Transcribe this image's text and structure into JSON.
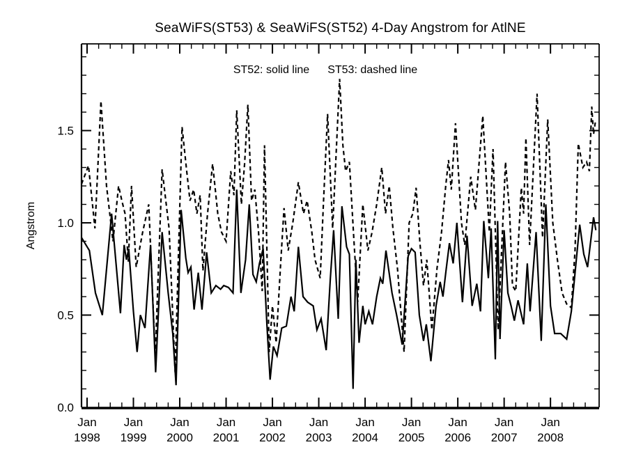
{
  "figure": {
    "title": "SeaWiFS(ST53) & SeaWiFS(ST52) 4-Day Angstrom for AtlNE",
    "legend": {
      "st52": "ST52: solid line",
      "st53": "ST53: dashed line"
    },
    "ylabel": "Angstrom",
    "line_color": "#000000",
    "background": "#ffffff"
  },
  "chart_data": {
    "type": "line",
    "title": "SeaWiFS(ST53) & SeaWiFS(ST52) 4-Day Angstrom for AtlNE",
    "xlabel": "",
    "ylabel": "Angstrom",
    "grid": false,
    "legend_position": "top-center-inside",
    "legend_entries": [
      "ST52: solid line",
      "ST53: dashed line"
    ],
    "xlim": [
      1997.88,
      2009.05
    ],
    "ylim": [
      0.0,
      1.97
    ],
    "ytick_major_values": [
      0.0,
      0.5,
      1.0,
      1.5
    ],
    "ytick_labels": [
      "0.0",
      "0.5",
      "1.0",
      "1.5"
    ],
    "ytick_minor_step": 0.1,
    "xtick_major_years": [
      1998,
      1999,
      2000,
      2001,
      2002,
      2003,
      2004,
      2005,
      2006,
      2007,
      2008
    ],
    "xtick_labels": [
      {
        "month": "Jan",
        "year": "1998"
      },
      {
        "month": "Jan",
        "year": "1999"
      },
      {
        "month": "Jan",
        "year": "2000"
      },
      {
        "month": "Jan",
        "year": "2001"
      },
      {
        "month": "Jan",
        "year": "2002"
      },
      {
        "month": "Jan",
        "year": "2003"
      },
      {
        "month": "Jan",
        "year": "2004"
      },
      {
        "month": "Jan",
        "year": "2005"
      },
      {
        "month": "Jan",
        "year": "2006"
      },
      {
        "month": "Jan",
        "year": "2007"
      },
      {
        "month": "Jan",
        "year": "2008"
      }
    ],
    "xtick_minor_step": 0.25,
    "series": [
      {
        "name": "ST52",
        "label": "ST52: solid line",
        "style": "solid",
        "color": "#000000",
        "points": [
          [
            1997.88,
            0.92
          ],
          [
            1998.05,
            0.85
          ],
          [
            1998.18,
            0.62
          ],
          [
            1998.33,
            0.5
          ],
          [
            1998.53,
            1.05
          ],
          [
            1998.72,
            0.51
          ],
          [
            1998.8,
            0.88
          ],
          [
            1998.85,
            0.8
          ],
          [
            1998.9,
            0.86
          ],
          [
            1999.0,
            0.52
          ],
          [
            1999.08,
            0.3
          ],
          [
            1999.15,
            0.5
          ],
          [
            1999.25,
            0.43
          ],
          [
            1999.37,
            0.88
          ],
          [
            1999.48,
            0.19
          ],
          [
            1999.62,
            0.95
          ],
          [
            1999.75,
            0.62
          ],
          [
            1999.85,
            0.4
          ],
          [
            1999.92,
            0.12
          ],
          [
            2000.03,
            1.07
          ],
          [
            2000.13,
            0.81
          ],
          [
            2000.18,
            0.73
          ],
          [
            2000.24,
            0.76
          ],
          [
            2000.31,
            0.53
          ],
          [
            2000.4,
            0.73
          ],
          [
            2000.48,
            0.53
          ],
          [
            2000.58,
            0.84
          ],
          [
            2000.68,
            0.62
          ],
          [
            2000.78,
            0.66
          ],
          [
            2000.88,
            0.64
          ],
          [
            2000.95,
            0.66
          ],
          [
            2001.05,
            0.65
          ],
          [
            2001.15,
            0.62
          ],
          [
            2001.23,
            1.18
          ],
          [
            2001.32,
            0.62
          ],
          [
            2001.42,
            0.8
          ],
          [
            2001.5,
            1.1
          ],
          [
            2001.58,
            0.72
          ],
          [
            2001.65,
            0.68
          ],
          [
            2001.72,
            0.78
          ],
          [
            2001.8,
            0.86
          ],
          [
            2001.88,
            0.45
          ],
          [
            2001.95,
            0.15
          ],
          [
            2002.02,
            0.33
          ],
          [
            2002.1,
            0.28
          ],
          [
            2002.2,
            0.43
          ],
          [
            2002.3,
            0.44
          ],
          [
            2002.4,
            0.6
          ],
          [
            2002.47,
            0.52
          ],
          [
            2002.56,
            0.87
          ],
          [
            2002.66,
            0.6
          ],
          [
            2002.76,
            0.57
          ],
          [
            2002.88,
            0.55
          ],
          [
            2002.96,
            0.42
          ],
          [
            2003.05,
            0.48
          ],
          [
            2003.16,
            0.31
          ],
          [
            2003.25,
            0.7
          ],
          [
            2003.32,
            0.96
          ],
          [
            2003.42,
            0.48
          ],
          [
            2003.5,
            1.09
          ],
          [
            2003.6,
            0.87
          ],
          [
            2003.66,
            0.83
          ],
          [
            2003.74,
            0.1
          ],
          [
            2003.8,
            0.8
          ],
          [
            2003.87,
            0.35
          ],
          [
            2003.95,
            0.55
          ],
          [
            2004.0,
            0.45
          ],
          [
            2004.08,
            0.52
          ],
          [
            2004.16,
            0.45
          ],
          [
            2004.25,
            0.6
          ],
          [
            2004.33,
            0.7
          ],
          [
            2004.38,
            0.67
          ],
          [
            2004.45,
            0.85
          ],
          [
            2004.58,
            0.62
          ],
          [
            2004.68,
            0.5
          ],
          [
            2004.8,
            0.34
          ],
          [
            2004.93,
            0.82
          ],
          [
            2005.0,
            0.86
          ],
          [
            2005.08,
            0.84
          ],
          [
            2005.17,
            0.5
          ],
          [
            2005.26,
            0.36
          ],
          [
            2005.32,
            0.45
          ],
          [
            2005.42,
            0.25
          ],
          [
            2005.53,
            0.55
          ],
          [
            2005.62,
            0.68
          ],
          [
            2005.68,
            0.6
          ],
          [
            2005.75,
            0.75
          ],
          [
            2005.82,
            0.89
          ],
          [
            2005.9,
            0.78
          ],
          [
            2005.98,
            1.0
          ],
          [
            2006.1,
            0.57
          ],
          [
            2006.2,
            0.93
          ],
          [
            2006.31,
            0.55
          ],
          [
            2006.41,
            0.67
          ],
          [
            2006.49,
            0.52
          ],
          [
            2006.56,
            1.01
          ],
          [
            2006.66,
            0.7
          ],
          [
            2006.72,
            0.97
          ],
          [
            2006.81,
            0.26
          ],
          [
            2006.86,
            1.01
          ],
          [
            2006.91,
            0.37
          ],
          [
            2007.0,
            0.96
          ],
          [
            2007.08,
            0.62
          ],
          [
            2007.15,
            0.55
          ],
          [
            2007.22,
            0.47
          ],
          [
            2007.3,
            0.58
          ],
          [
            2007.42,
            0.45
          ],
          [
            2007.5,
            0.78
          ],
          [
            2007.56,
            0.52
          ],
          [
            2007.69,
            0.95
          ],
          [
            2007.8,
            0.36
          ],
          [
            2007.9,
            1.1
          ],
          [
            2008.0,
            0.55
          ],
          [
            2008.09,
            0.4
          ],
          [
            2008.22,
            0.4
          ],
          [
            2008.35,
            0.37
          ],
          [
            2008.45,
            0.52
          ],
          [
            2008.63,
            0.99
          ],
          [
            2008.72,
            0.83
          ],
          [
            2008.8,
            0.76
          ],
          [
            2008.93,
            1.03
          ],
          [
            2008.98,
            0.96
          ]
        ]
      },
      {
        "name": "ST53",
        "label": "ST53: dashed line",
        "style": "dashed",
        "color": "#000000",
        "points": [
          [
            1997.88,
            1.21
          ],
          [
            1998.03,
            1.31
          ],
          [
            1998.17,
            0.97
          ],
          [
            1998.3,
            1.66
          ],
          [
            1998.42,
            1.2
          ],
          [
            1998.56,
            0.9
          ],
          [
            1998.68,
            1.2
          ],
          [
            1998.75,
            1.12
          ],
          [
            1998.82,
            1.05
          ],
          [
            1998.89,
            0.79
          ],
          [
            1998.96,
            1.2
          ],
          [
            1999.06,
            0.76
          ],
          [
            1999.2,
            0.95
          ],
          [
            1999.33,
            1.1
          ],
          [
            1999.47,
            0.28
          ],
          [
            1999.62,
            1.29
          ],
          [
            1999.77,
            0.97
          ],
          [
            1999.9,
            0.19
          ],
          [
            2000.05,
            1.52
          ],
          [
            2000.15,
            1.28
          ],
          [
            2000.22,
            1.12
          ],
          [
            2000.3,
            1.18
          ],
          [
            2000.37,
            1.05
          ],
          [
            2000.44,
            1.15
          ],
          [
            2000.5,
            0.74
          ],
          [
            2000.6,
            1.05
          ],
          [
            2000.71,
            1.32
          ],
          [
            2000.82,
            1.05
          ],
          [
            2000.9,
            0.95
          ],
          [
            2001.0,
            0.9
          ],
          [
            2001.1,
            1.28
          ],
          [
            2001.17,
            1.15
          ],
          [
            2001.23,
            1.61
          ],
          [
            2001.33,
            1.1
          ],
          [
            2001.4,
            1.32
          ],
          [
            2001.47,
            1.64
          ],
          [
            2001.55,
            1.12
          ],
          [
            2001.62,
            1.18
          ],
          [
            2001.7,
            0.95
          ],
          [
            2001.78,
            0.63
          ],
          [
            2001.83,
            1.42
          ],
          [
            2001.93,
            0.3
          ],
          [
            2002.0,
            0.55
          ],
          [
            2002.08,
            0.35
          ],
          [
            2002.17,
            0.75
          ],
          [
            2002.25,
            1.08
          ],
          [
            2002.34,
            0.85
          ],
          [
            2002.44,
            1.0
          ],
          [
            2002.56,
            1.22
          ],
          [
            2002.67,
            1.05
          ],
          [
            2002.75,
            1.12
          ],
          [
            2002.85,
            0.95
          ],
          [
            2002.92,
            0.8
          ],
          [
            2003.03,
            0.7
          ],
          [
            2003.1,
            1.1
          ],
          [
            2003.19,
            1.59
          ],
          [
            2003.3,
            0.97
          ],
          [
            2003.45,
            1.78
          ],
          [
            2003.52,
            1.42
          ],
          [
            2003.58,
            1.28
          ],
          [
            2003.66,
            1.33
          ],
          [
            2003.76,
            0.9
          ],
          [
            2003.84,
            0.57
          ],
          [
            2003.95,
            1.1
          ],
          [
            2004.06,
            0.85
          ],
          [
            2004.15,
            0.95
          ],
          [
            2004.25,
            1.1
          ],
          [
            2004.36,
            1.3
          ],
          [
            2004.44,
            1.05
          ],
          [
            2004.52,
            1.2
          ],
          [
            2004.6,
            0.97
          ],
          [
            2004.7,
            0.75
          ],
          [
            2004.84,
            0.3
          ],
          [
            2004.95,
            1.0
          ],
          [
            2005.03,
            1.05
          ],
          [
            2005.1,
            1.19
          ],
          [
            2005.18,
            0.9
          ],
          [
            2005.26,
            0.66
          ],
          [
            2005.33,
            0.8
          ],
          [
            2005.44,
            0.42
          ],
          [
            2005.55,
            0.75
          ],
          [
            2005.65,
            0.95
          ],
          [
            2005.74,
            1.2
          ],
          [
            2005.8,
            1.34
          ],
          [
            2005.86,
            1.18
          ],
          [
            2005.95,
            1.54
          ],
          [
            2006.08,
            1.0
          ],
          [
            2006.15,
            0.88
          ],
          [
            2006.28,
            1.25
          ],
          [
            2006.38,
            1.07
          ],
          [
            2006.54,
            1.58
          ],
          [
            2006.68,
            0.95
          ],
          [
            2006.76,
            1.4
          ],
          [
            2006.87,
            0.42
          ],
          [
            2007.03,
            1.33
          ],
          [
            2007.12,
            1.05
          ],
          [
            2007.18,
            0.66
          ],
          [
            2007.25,
            0.63
          ],
          [
            2007.37,
            1.19
          ],
          [
            2007.42,
            1.05
          ],
          [
            2007.47,
            1.46
          ],
          [
            2007.55,
            0.88
          ],
          [
            2007.71,
            1.7
          ],
          [
            2007.83,
            0.92
          ],
          [
            2007.94,
            1.56
          ],
          [
            2008.05,
            1.0
          ],
          [
            2008.15,
            0.8
          ],
          [
            2008.25,
            0.62
          ],
          [
            2008.35,
            0.56
          ],
          [
            2008.45,
            0.54
          ],
          [
            2008.53,
            0.85
          ],
          [
            2008.6,
            1.43
          ],
          [
            2008.7,
            1.3
          ],
          [
            2008.78,
            1.33
          ],
          [
            2008.84,
            1.28
          ],
          [
            2008.89,
            1.63
          ],
          [
            2008.93,
            1.48
          ],
          [
            2008.97,
            1.55
          ]
        ]
      }
    ]
  }
}
